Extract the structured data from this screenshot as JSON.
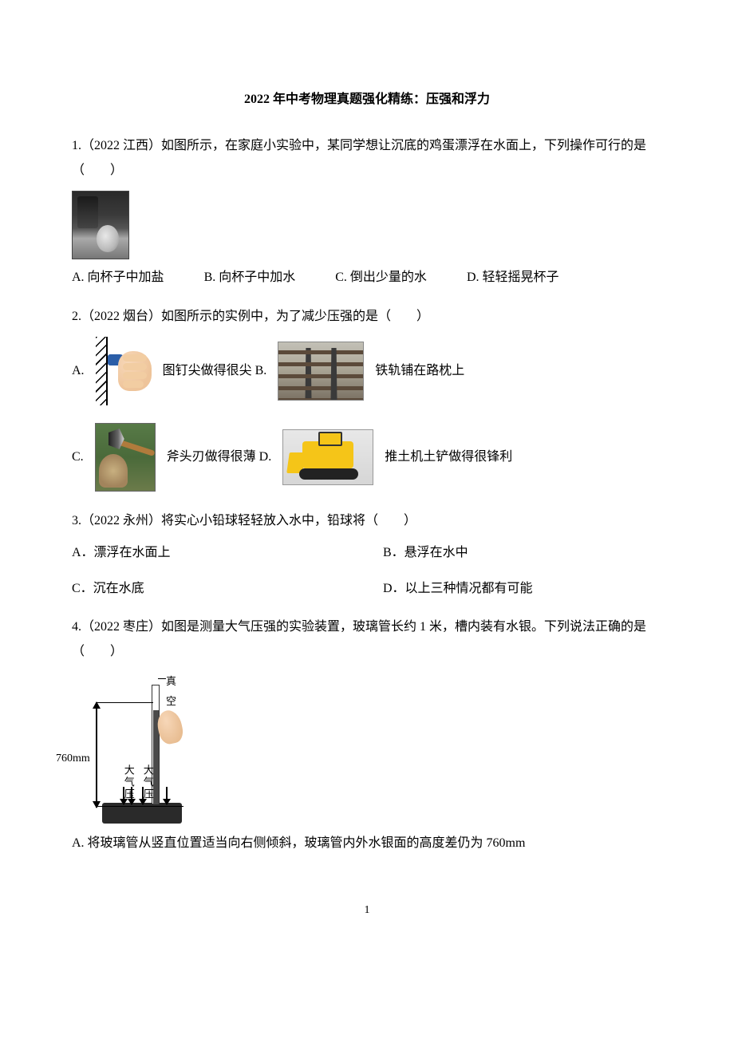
{
  "page": {
    "title": "2022 年中考物理真题强化精练：压强和浮力",
    "page_number": "1"
  },
  "q1": {
    "text": "1.（2022 江西）如图所示，在家庭小实验中，某同学想让沉底的鸡蛋漂浮在水面上，下列操作可行的是（　　）",
    "A": "A.  向杯子中加盐",
    "B": "B.  向杯子中加水",
    "C": "C.  倒出少量的水",
    "D": "D.  轻轻摇晃杯子"
  },
  "q2": {
    "text": "2.（2022 烟台）如图所示的实例中，为了减少压强的是（　　）",
    "A_pre": "A.",
    "A_post": "图钉尖做得很尖 B.",
    "B_post": "铁轨铺在路枕上",
    "C_pre": "C.",
    "C_post": "斧头刃做得很薄 D.",
    "D_post": "推土机土铲做得很锋利"
  },
  "q3": {
    "text": "3.（2022 永州）将实心小铅球轻轻放入水中，铅球将（　　）",
    "A": "A．漂浮在水面上",
    "B": "B．悬浮在水中",
    "C": "C．沉在水底",
    "D": "D．以上三种情况都有可能"
  },
  "q4": {
    "text": "4.（2022 枣庄）如图是测量大气压强的实验装置，玻璃管长约 1 米，槽内装有水银。下列说法正确的是（　　）",
    "diagram": {
      "vacuum_label": "真空",
      "height_label": "760mm",
      "atm_left": "大气压",
      "atm_right": "大气压"
    },
    "A": "A.  将玻璃管从竖直位置适当向右侧倾斜，玻璃管内外水银面的高度差仍为 760mm"
  }
}
